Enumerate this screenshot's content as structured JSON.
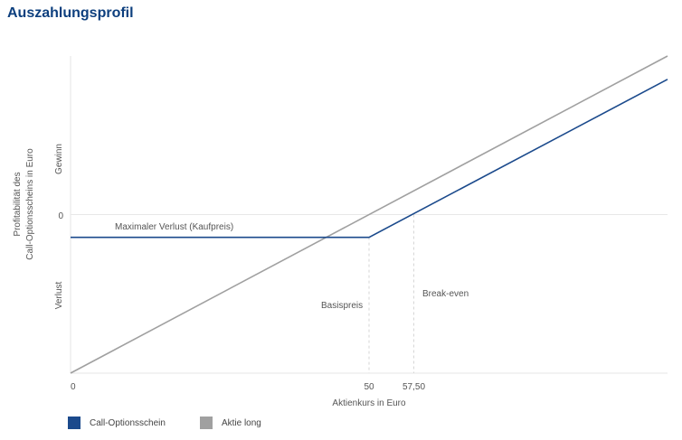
{
  "title": "Auszahlungsprofil",
  "chart_data": {
    "type": "line",
    "title": "Auszahlungsprofil",
    "xlabel": "Aktienkurs in Euro",
    "ylabel_lines": [
      "Profitabilität des",
      "Call-Optionsscheins in Euro"
    ],
    "y_tick_labels": {
      "top": "Gewinn",
      "zero": "0",
      "bottom": "Verlust"
    },
    "x_ticks": [
      {
        "value": 0,
        "label": "0"
      },
      {
        "value": 50,
        "label": "50"
      },
      {
        "value": 57.5,
        "label": "57,50"
      }
    ],
    "xlim": [
      0,
      100
    ],
    "ylim": [
      -26.5,
      26.5
    ],
    "series": [
      {
        "name": "Call-Optionsschein",
        "color": "#1b4a8c",
        "points": [
          [
            0,
            -3.8
          ],
          [
            50,
            -3.8
          ],
          [
            100,
            22.6
          ]
        ]
      },
      {
        "name": "Aktie long",
        "color": "#a0a0a0",
        "points": [
          [
            0,
            -26.5
          ],
          [
            100,
            26.5
          ]
        ]
      }
    ],
    "annotations": {
      "max_loss": "Maximaler Verlust (Kaufpreis)",
      "strike": "Basispreis",
      "break_even": "Break-even"
    },
    "grid": true,
    "legend_position": "bottom-left"
  }
}
